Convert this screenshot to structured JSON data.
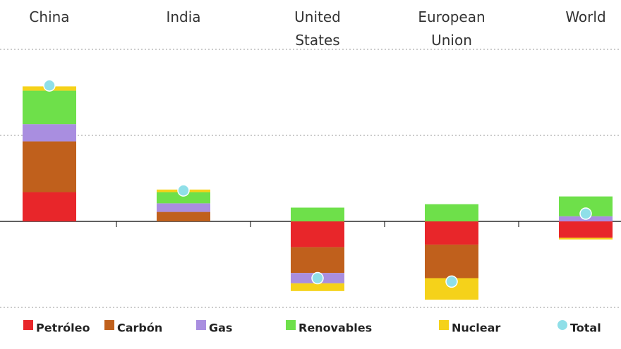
{
  "chart_data": {
    "type": "bar",
    "stacked": true,
    "categories": [
      "China",
      "India",
      "United States",
      "European Union",
      "World"
    ],
    "series": [
      {
        "name": "Petróleo",
        "color": "#e8262a",
        "values": [
          0.34,
          0,
          -0.3,
          -0.27,
          -0.19
        ]
      },
      {
        "name": "Carbón",
        "color": "#c0601c",
        "values": [
          0.59,
          0.11,
          -0.3,
          -0.39,
          0
        ]
      },
      {
        "name": "Gas",
        "color": "#a98ee0",
        "values": [
          0.2,
          0.1,
          -0.12,
          0,
          0.06
        ]
      },
      {
        "name": "Renovables",
        "color": "#6ee04a",
        "values": [
          0.39,
          0.13,
          0.16,
          0.2,
          0.23
        ]
      },
      {
        "name": "Nuclear",
        "color": "#f5d21a",
        "values": [
          0.05,
          0.03,
          -0.09,
          -0.25,
          -0.02
        ]
      },
      {
        "name": "Total",
        "color": "#8fdfe8",
        "type": "scatter",
        "values": [
          1.58,
          0.36,
          -0.66,
          -0.7,
          0.09
        ]
      }
    ],
    "ylim": [
      -1,
      2
    ],
    "yticks": [
      -1,
      0,
      1,
      2
    ],
    "grid": true,
    "legend": "bottom"
  }
}
